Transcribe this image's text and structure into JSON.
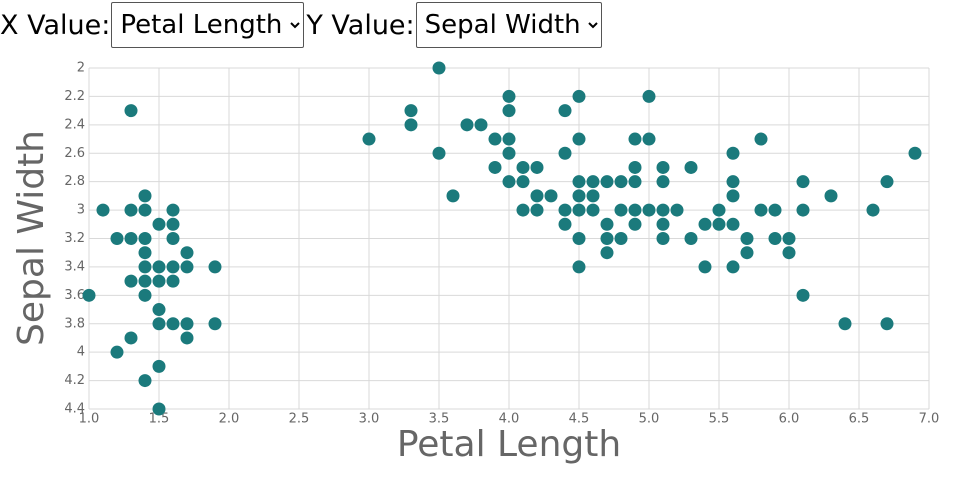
{
  "controls": {
    "x_label": "X Value:",
    "x_selected": "Petal Length",
    "y_label": "Y Value:",
    "y_selected": "Sepal Width"
  },
  "chart_data": {
    "type": "scatter",
    "xlabel": "Petal Length",
    "ylabel": "Sepal Width",
    "color": "#1b7a7c",
    "grid": true,
    "xlim": [
      1.0,
      7.0
    ],
    "ylim": [
      4.4,
      2
    ],
    "xticks": [
      {
        "value": 1.0,
        "label": "1.0"
      },
      1.5,
      {
        "value": 2.0,
        "label": "2.0"
      },
      2.5,
      {
        "value": 3.0,
        "label": "3.0"
      },
      3.5,
      {
        "value": 4.0,
        "label": "4.0"
      },
      4.5,
      {
        "value": 5.0,
        "label": "5.0"
      },
      5.5,
      {
        "value": 6.0,
        "label": "6.0"
      },
      6.5,
      {
        "value": 7.0,
        "label": "7.0"
      }
    ],
    "yticks": [
      2,
      2.2,
      2.4,
      2.6,
      2.8,
      3,
      3.2,
      3.4,
      3.6,
      3.8,
      4,
      4.2,
      4.4
    ],
    "x": [
      1.0,
      1.1,
      1.2,
      1.2,
      1.3,
      1.3,
      1.3,
      1.3,
      1.3,
      1.4,
      1.4,
      1.4,
      1.4,
      1.4,
      1.4,
      1.4,
      1.4,
      1.5,
      1.5,
      1.5,
      1.5,
      1.5,
      1.5,
      1.5,
      1.6,
      1.6,
      1.6,
      1.6,
      1.6,
      1.6,
      1.7,
      1.7,
      1.7,
      1.7,
      1.9,
      1.9,
      3.0,
      3.3,
      3.3,
      3.5,
      3.5,
      3.6,
      3.7,
      3.8,
      3.9,
      3.9,
      4.0,
      4.0,
      4.0,
      4.0,
      4.0,
      4.1,
      4.1,
      4.1,
      4.2,
      4.2,
      4.2,
      4.3,
      4.4,
      4.4,
      4.4,
      4.4,
      4.5,
      4.5,
      4.5,
      4.5,
      4.5,
      4.5,
      4.5,
      4.6,
      4.6,
      4.6,
      4.7,
      4.7,
      4.7,
      4.7,
      4.8,
      4.8,
      4.8,
      4.9,
      4.9,
      4.9,
      4.9,
      4.9,
      5.0,
      5.0,
      5.0,
      5.1,
      5.1,
      5.1,
      5.1,
      5.1,
      5.2,
      5.3,
      5.3,
      5.4,
      5.4,
      5.5,
      5.5,
      5.6,
      5.6,
      5.6,
      5.6,
      5.6,
      5.7,
      5.7,
      5.8,
      5.8,
      5.9,
      5.9,
      6.0,
      6.0,
      6.1,
      6.1,
      6.1,
      6.3,
      6.4,
      6.6,
      6.7,
      6.7,
      6.9
    ],
    "values": [
      3.6,
      3.0,
      3.2,
      4.0,
      2.3,
      3.0,
      3.2,
      3.5,
      3.9,
      2.9,
      3.0,
      3.2,
      3.3,
      3.4,
      3.5,
      3.6,
      4.2,
      3.1,
      3.4,
      3.5,
      3.7,
      3.8,
      4.1,
      4.4,
      3.0,
      3.1,
      3.2,
      3.4,
      3.5,
      3.8,
      3.3,
      3.4,
      3.8,
      3.9,
      3.4,
      3.8,
      2.5,
      2.3,
      2.4,
      2.0,
      2.6,
      2.9,
      2.4,
      2.4,
      2.5,
      2.7,
      2.2,
      2.3,
      2.5,
      2.6,
      2.8,
      2.7,
      2.8,
      3.0,
      2.7,
      2.9,
      3.0,
      2.9,
      2.3,
      2.6,
      3.0,
      3.1,
      2.2,
      2.5,
      2.8,
      2.9,
      3.0,
      3.2,
      3.4,
      2.8,
      2.9,
      3.0,
      2.8,
      3.1,
      3.2,
      3.3,
      2.8,
      3.0,
      3.2,
      2.5,
      2.7,
      2.8,
      3.0,
      3.1,
      2.2,
      2.5,
      3.0,
      2.7,
      2.8,
      3.0,
      3.1,
      3.2,
      3.0,
      2.7,
      3.2,
      3.1,
      3.4,
      3.0,
      3.1,
      2.6,
      2.8,
      2.9,
      3.1,
      3.4,
      3.2,
      3.3,
      2.5,
      3.0,
      3.0,
      3.2,
      3.2,
      3.3,
      2.8,
      3.0,
      3.6,
      2.9,
      3.8,
      3.0,
      2.8,
      3.8,
      2.6
    ]
  }
}
